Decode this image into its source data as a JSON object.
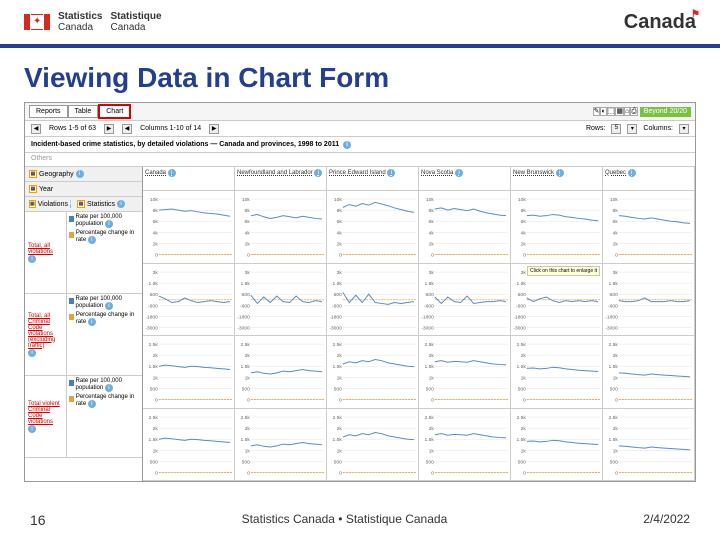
{
  "header": {
    "org_en": "Statistics",
    "org_en2": "Canada",
    "org_fr": "Statistique",
    "org_fr2": "Canada",
    "wordmark": "Canada"
  },
  "slide_title": "Viewing Data in Chart Form",
  "tabs": [
    "Reports",
    "Table",
    "Chart"
  ],
  "active_tab": 2,
  "toolbar_icons": [
    "✎",
    "◐",
    "⬚",
    "▦",
    "⌂",
    "⎙"
  ],
  "beyond_label": "Beyond 20/20",
  "nav": {
    "rows_text": "Rows 1-5 of 63",
    "cols_text": "Columns 1-10 of 14",
    "rows_label": "Rows:",
    "rows_val": "5",
    "cols_label": "Columns:"
  },
  "dataset_title": "Incident-based crime statistics, by detailed violations — Canada and provinces, 1998 to 2011",
  "ghost": "Others",
  "dimensions": {
    "geography": "Geography",
    "year": "Year",
    "violations": "Violations",
    "statistics": "Statistics"
  },
  "columns": [
    "Canada",
    "Newfoundland and Labrador",
    "Prince Edward Island",
    "Nova Scotia",
    "New Brunswick",
    "Quebec",
    "Ontario"
  ],
  "violations": [
    {
      "label1": "Total, all",
      "label2": "violations"
    },
    {
      "label1": "Total, all",
      "label2": "Criminal Code",
      "label3": "violations",
      "label4": "(excluding",
      "label5": "traffic)"
    },
    {
      "label1": "Total violent",
      "label2": "Criminal Code",
      "label3": "violations"
    }
  ],
  "stats": [
    {
      "label": "Rate per 100,000 population",
      "color": "blue"
    },
    {
      "label": "Percentage change in rate",
      "color": "orange"
    }
  ],
  "click_hint": "Click on this chart to enlarge it",
  "charts": {
    "ylim_rate": [
      0,
      10000
    ],
    "ytick_step_rate": 2000,
    "ylim_pct": [
      -3000,
      3000
    ],
    "ylim_vrate": [
      0,
      2500
    ],
    "line_color": "#5a8bc4",
    "zero_color": "#e8a23d",
    "grid_color": "#ccc",
    "bg": "#ffffff",
    "series": {
      "row1": [
        [
          8000,
          8100,
          8200,
          8000,
          7800,
          7900,
          7700,
          7500,
          7400,
          7300,
          7100,
          6900
        ],
        [
          7000,
          7200,
          6800,
          6500,
          6700,
          7000,
          6800,
          6600,
          6900,
          6700,
          6500,
          6400
        ],
        [
          8500,
          9000,
          8700,
          9200,
          8900,
          9400,
          9100,
          8800,
          8400,
          8100,
          7800,
          7600
        ],
        [
          8200,
          8400,
          8000,
          8300,
          8100,
          7900,
          8200,
          7800,
          7500,
          7300,
          7100,
          7000
        ],
        [
          7000,
          7100,
          6900,
          7000,
          7200,
          7100,
          6800,
          6700,
          6500,
          6400,
          6200,
          6100
        ],
        [
          7000,
          6900,
          6700,
          6500,
          6400,
          6600,
          6400,
          6200,
          6000,
          5900,
          5700,
          5600
        ]
      ],
      "row2": [
        [
          400,
          100,
          -300,
          -200,
          200,
          -100,
          -300,
          -200,
          -100,
          -200,
          -300,
          -200
        ],
        [
          500,
          -400,
          300,
          -300,
          400,
          -200,
          -300,
          400,
          -200,
          -300,
          -100,
          -200
        ],
        [
          800,
          -300,
          500,
          -300,
          600,
          -300,
          -400,
          -500,
          -300,
          -400,
          -300,
          -200
        ],
        [
          300,
          -400,
          300,
          -200,
          -300,
          400,
          -400,
          -300,
          -200,
          -200,
          -100,
          -200
        ],
        [
          200,
          -200,
          100,
          300,
          -100,
          -300,
          -100,
          -200,
          -100,
          -200,
          -100,
          -200
        ],
        [
          -100,
          -200,
          -200,
          -100,
          200,
          -200,
          -200,
          -200,
          -100,
          -200,
          -200,
          -100
        ]
      ],
      "row3": [
        [
          1500,
          1550,
          1520,
          1480,
          1450,
          1500,
          1480,
          1450,
          1430,
          1400,
          1380,
          1350
        ],
        [
          1200,
          1250,
          1180,
          1150,
          1200,
          1280,
          1250,
          1300,
          1350,
          1300,
          1280,
          1250
        ],
        [
          1600,
          1700,
          1650,
          1750,
          1700,
          1800,
          1750,
          1650,
          1600,
          1550,
          1500,
          1480
        ],
        [
          1700,
          1750,
          1680,
          1720,
          1700,
          1680,
          1750,
          1700,
          1650,
          1600,
          1580,
          1560
        ],
        [
          1400,
          1420,
          1380,
          1400,
          1450,
          1430,
          1380,
          1350,
          1320,
          1300,
          1280,
          1260
        ],
        [
          1200,
          1180,
          1150,
          1120,
          1100,
          1150,
          1120,
          1100,
          1080,
          1060,
          1040,
          1020
        ]
      ]
    }
  },
  "footer": {
    "page": "16",
    "center": "Statistics Canada • Statistique Canada",
    "date": "2/4/2022"
  }
}
